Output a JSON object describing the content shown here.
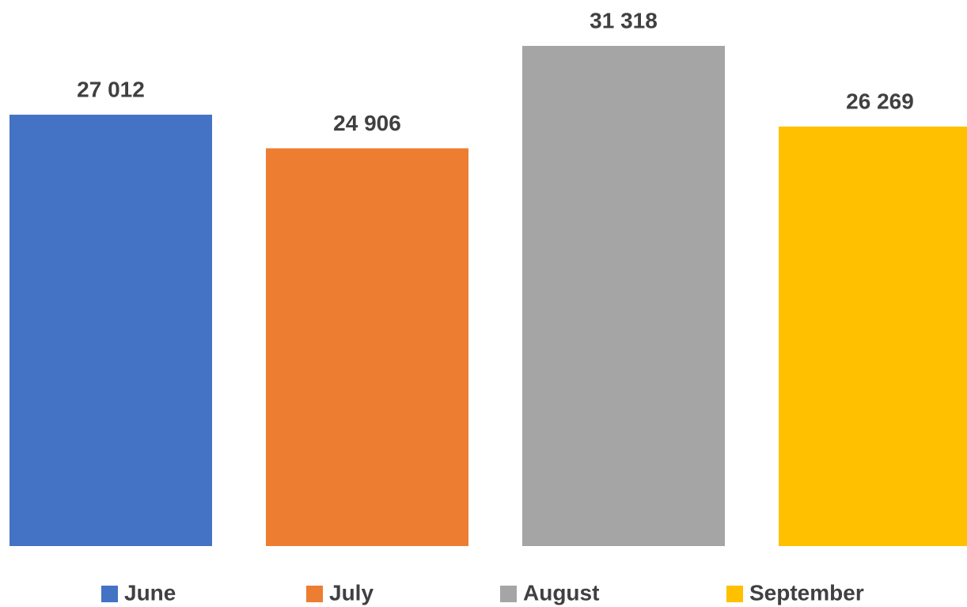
{
  "chart_data": {
    "type": "bar",
    "series": [
      {
        "name": "June",
        "color": "#4472c4",
        "values": [
          27012
        ],
        "value_labels": [
          "27 012"
        ]
      },
      {
        "name": "July",
        "color": "#ed7d31",
        "values": [
          24906
        ],
        "value_labels": [
          "24 906"
        ]
      },
      {
        "name": "August",
        "color": "#a5a5a5",
        "values": [
          31318
        ],
        "value_labels": [
          "31 318"
        ]
      },
      {
        "name": "September",
        "color": "#ffc000",
        "values": [
          26269
        ],
        "value_labels": [
          "26 269"
        ]
      }
    ],
    "legend": "bottom"
  }
}
